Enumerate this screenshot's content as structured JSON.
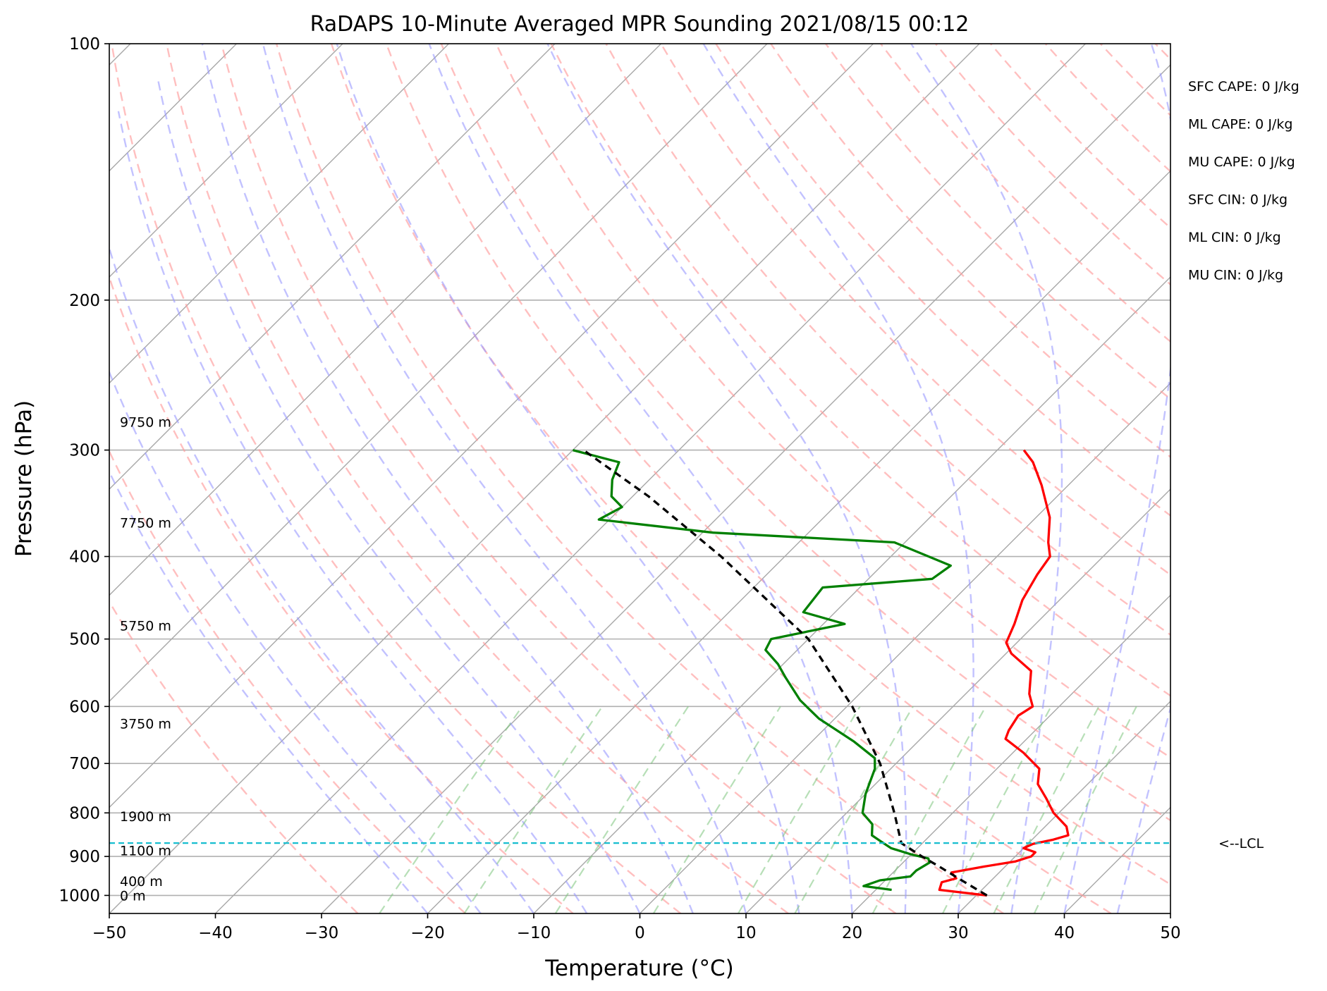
{
  "chart_data": {
    "type": "line",
    "title": "RaDAPS 10-Minute Averaged MPR Sounding 2021/08/15 00:12",
    "xlabel": "Temperature (°C)",
    "ylabel": "Pressure (hPa)",
    "xlim": [
      -50,
      50
    ],
    "ylim": [
      1050,
      100
    ],
    "y_scale": "log",
    "skew": "skew-T log-p",
    "grid": true,
    "x_ticks": [
      "−50",
      "−40",
      "−30",
      "−20",
      "−10",
      "0",
      "10",
      "20",
      "30",
      "40",
      "50"
    ],
    "x_tick_values": [
      -50,
      -40,
      -30,
      -20,
      -10,
      0,
      10,
      20,
      30,
      40,
      50
    ],
    "y_ticks": [
      "100",
      "200",
      "300",
      "400",
      "500",
      "600",
      "700",
      "800",
      "900",
      "1000"
    ],
    "y_tick_values": [
      100,
      200,
      300,
      400,
      500,
      600,
      700,
      800,
      900,
      1000
    ],
    "height_labels": [
      {
        "label": "9750 m",
        "p": 278
      },
      {
        "label": "7750 m",
        "p": 365
      },
      {
        "label": "5750 m",
        "p": 482
      },
      {
        "label": "3750 m",
        "p": 628
      },
      {
        "label": "1900 m",
        "p": 807
      },
      {
        "label": "1100 m",
        "p": 885
      },
      {
        "label": "400 m",
        "p": 962
      },
      {
        "label": "0 m",
        "p": 1000
      }
    ],
    "lcl": {
      "label": "<--LCL",
      "p": 868,
      "color": "#17becf"
    },
    "stats": [
      "SFC CAPE: 0 J/kg",
      "ML CAPE: 0 J/kg",
      "MU CAPE: 0 J/kg",
      "SFC CIN: 0 J/kg",
      "ML CIN: 0 J/kg",
      "MU CIN: 0 J/kg"
    ],
    "series": [
      {
        "color": "#ff0000",
        "points": [
          [
            1000,
            31
          ],
          [
            985,
            26
          ],
          [
            965,
            25.5
          ],
          [
            955,
            26.5
          ],
          [
            940,
            25.5
          ],
          [
            925,
            28
          ],
          [
            912,
            30.5
          ],
          [
            900,
            31.5
          ],
          [
            890,
            31.5
          ],
          [
            880,
            30
          ],
          [
            870,
            30.5
          ],
          [
            860,
            32
          ],
          [
            850,
            33
          ],
          [
            830,
            32
          ],
          [
            800,
            29.5
          ],
          [
            770,
            27.5
          ],
          [
            740,
            25.3
          ],
          [
            710,
            24
          ],
          [
            680,
            21
          ],
          [
            655,
            18
          ],
          [
            640,
            17.5
          ],
          [
            615,
            17
          ],
          [
            600,
            17.5
          ],
          [
            580,
            16
          ],
          [
            545,
            14
          ],
          [
            520,
            10.5
          ],
          [
            505,
            9
          ],
          [
            480,
            8
          ],
          [
            450,
            6.5
          ],
          [
            420,
            5.5
          ],
          [
            400,
            5
          ],
          [
            385,
            3.5
          ],
          [
            360,
            1.3
          ],
          [
            330,
            -2.5
          ],
          [
            310,
            -5.5
          ],
          [
            300,
            -7.5
          ]
        ]
      },
      {
        "color": "#008000",
        "points": [
          [
            985,
            21.5
          ],
          [
            975,
            18.5
          ],
          [
            960,
            19.5
          ],
          [
            950,
            22
          ],
          [
            935,
            22
          ],
          [
            915,
            22.5
          ],
          [
            905,
            22
          ],
          [
            895,
            20
          ],
          [
            880,
            17.5
          ],
          [
            865,
            16
          ],
          [
            850,
            14.5
          ],
          [
            825,
            13.5
          ],
          [
            800,
            11.5
          ],
          [
            760,
            10
          ],
          [
            710,
            8.5
          ],
          [
            690,
            7.5
          ],
          [
            660,
            4
          ],
          [
            620,
            -1.5
          ],
          [
            590,
            -5
          ],
          [
            555,
            -8.5
          ],
          [
            535,
            -10.5
          ],
          [
            515,
            -13
          ],
          [
            500,
            -13.5
          ],
          [
            480,
            -8
          ],
          [
            465,
            -13
          ],
          [
            435,
            -13.5
          ],
          [
            425,
            -4
          ],
          [
            410,
            -3.5
          ],
          [
            385,
            -11
          ],
          [
            375,
            -29
          ],
          [
            362,
            -41
          ],
          [
            350,
            -40
          ],
          [
            340,
            -42
          ],
          [
            325,
            -43.5
          ],
          [
            310,
            -44.5
          ],
          [
            300,
            -50
          ]
        ]
      },
      {
        "color": "#000000",
        "dashed": true,
        "points": [
          [
            1000,
            31
          ],
          [
            960,
            27.2
          ],
          [
            925,
            23.8
          ],
          [
            900,
            21.2
          ],
          [
            875,
            18.7
          ],
          [
            868,
            18
          ],
          [
            800,
            14.5
          ],
          [
            700,
            8.5
          ],
          [
            600,
            0.5
          ],
          [
            500,
            -10
          ],
          [
            400,
            -26
          ],
          [
            340,
            -38.5
          ],
          [
            300,
            -49
          ]
        ]
      }
    ]
  }
}
